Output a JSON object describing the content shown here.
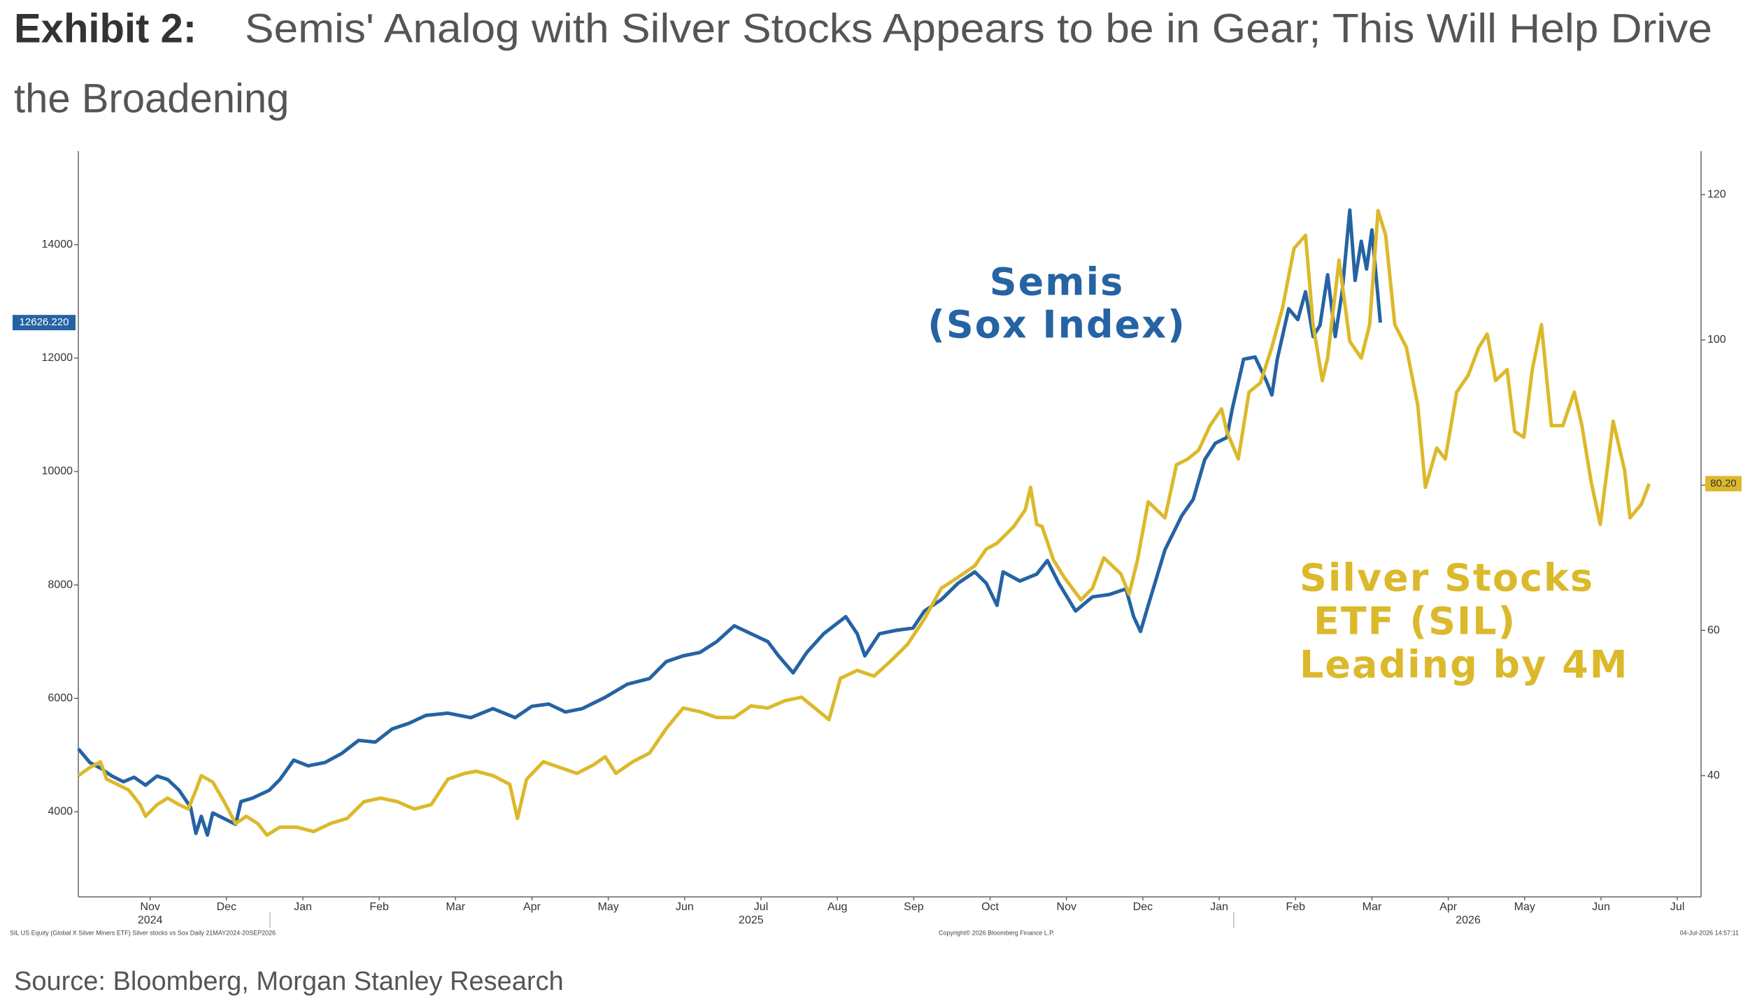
{
  "chart_data": {
    "type": "line",
    "exhibit_label": "Exhibit 2:",
    "title_lines": [
      "Semis' Analog with Silver Stocks Appears to be in Gear; This Will Help Drive",
      "the Broadening"
    ],
    "source": "Source: Bloomberg, Morgan Stanley Research",
    "footer": [
      "SIL US Equity (Global X Silver Miners ETF) Silver stocks vs Sox Daily 21MAY2024-20SEP2026",
      "Copyright© 2026 Bloomberg Finance L.P.",
      "04-Jul-2026 14:57:11"
    ],
    "annotations": [
      {
        "series": 0,
        "lines": [
          "Semis",
          "(Sox Index)"
        ]
      },
      {
        "series": 1,
        "lines": [
          "Silver Stocks",
          "ETF (SIL)",
          "Leading by 4M"
        ]
      }
    ],
    "xlim": [
      -0.94,
      20.31
    ],
    "xticks": [
      {
        "value": 0,
        "label": "Nov"
      },
      {
        "value": 1,
        "label": "Dec"
      },
      {
        "value": 2,
        "label": "Jan"
      },
      {
        "value": 3,
        "label": "Feb"
      },
      {
        "value": 4,
        "label": "Mar"
      },
      {
        "value": 5,
        "label": "Apr"
      },
      {
        "value": 6,
        "label": "May"
      },
      {
        "value": 7,
        "label": "Jun"
      },
      {
        "value": 8,
        "label": "Jul"
      },
      {
        "value": 9,
        "label": "Aug"
      },
      {
        "value": 10,
        "label": "Sep"
      },
      {
        "value": 11,
        "label": "Oct"
      },
      {
        "value": 12,
        "label": "Nov"
      },
      {
        "value": 13,
        "label": "Dec"
      },
      {
        "value": 14,
        "label": "Jan"
      },
      {
        "value": 15,
        "label": "Feb"
      },
      {
        "value": 16,
        "label": "Mar"
      },
      {
        "value": 17,
        "label": "Apr"
      },
      {
        "value": 18,
        "label": "May"
      },
      {
        "value": 19,
        "label": "Jun"
      },
      {
        "value": 20,
        "label": "Jul"
      }
    ],
    "year_labels": [
      {
        "value": 0,
        "label": "2024"
      },
      {
        "value": 7.87,
        "label": "2025"
      },
      {
        "value": 17.26,
        "label": "2026"
      }
    ],
    "year_dividers": [
      1.57,
      14.19
    ],
    "ylim": [
      2500,
      15650
    ],
    "yticks": [
      4000,
      6000,
      8000,
      10000,
      12000,
      14000
    ],
    "y2lim": [
      23.3,
      126
    ],
    "y2ticks": [
      40,
      60,
      80,
      100,
      120
    ],
    "grid": false,
    "series": [
      {
        "name": "Semis (Sox Index)",
        "color": "#2563a3",
        "axis": "y",
        "end_label": {
          "value": 12626.22,
          "label": "12626.220"
        },
        "x": [
          -0.94,
          -0.79,
          -0.65,
          -0.5,
          -0.35,
          -0.21,
          -0.06,
          0.09,
          0.23,
          0.38,
          0.53,
          0.6,
          0.67,
          0.75,
          0.82,
          0.97,
          1.12,
          1.19,
          1.34,
          1.56,
          1.7,
          1.88,
          2.07,
          2.29,
          2.51,
          2.73,
          2.95,
          3.17,
          3.39,
          3.61,
          3.9,
          4.2,
          4.49,
          4.78,
          5.0,
          5.22,
          5.44,
          5.66,
          5.96,
          6.25,
          6.54,
          6.76,
          6.98,
          7.2,
          7.42,
          7.65,
          7.87,
          8.09,
          8.23,
          8.42,
          8.6,
          8.82,
          9.11,
          9.26,
          9.36,
          9.55,
          9.77,
          9.99,
          10.14,
          10.36,
          10.58,
          10.8,
          10.95,
          11.09,
          11.17,
          11.39,
          11.61,
          11.75,
          11.9,
          12.12,
          12.34,
          12.56,
          12.78,
          12.88,
          12.97,
          13.07,
          13.29,
          13.51,
          13.66,
          13.81,
          13.95,
          14.1,
          14.17,
          14.32,
          14.47,
          14.62,
          14.69,
          14.76,
          14.91,
          15.03,
          15.13,
          15.23,
          15.32,
          15.42,
          15.52,
          15.61,
          15.71,
          15.78,
          15.86,
          15.93,
          16.0,
          16.11
        ],
        "values": [
          5110,
          4870,
          4770,
          4630,
          4530,
          4610,
          4470,
          4630,
          4570,
          4380,
          4080,
          3620,
          3920,
          3590,
          3980,
          3880,
          3780,
          4180,
          4240,
          4380,
          4570,
          4910,
          4810,
          4870,
          5030,
          5260,
          5230,
          5460,
          5560,
          5700,
          5740,
          5660,
          5820,
          5660,
          5860,
          5900,
          5760,
          5820,
          6020,
          6250,
          6350,
          6650,
          6750,
          6810,
          7000,
          7280,
          7140,
          7000,
          6750,
          6450,
          6810,
          7140,
          7440,
          7140,
          6750,
          7140,
          7200,
          7240,
          7540,
          7740,
          8030,
          8230,
          8030,
          7640,
          8230,
          8070,
          8190,
          8430,
          8030,
          7540,
          7790,
          7830,
          7930,
          7440,
          7180,
          7640,
          8620,
          9220,
          9510,
          10210,
          10500,
          10600,
          11100,
          11980,
          12020,
          11590,
          11350,
          11980,
          12870,
          12680,
          13170,
          12380,
          12580,
          13470,
          12380,
          13170,
          14610,
          13370,
          14060,
          13570,
          14260,
          12626.22
        ]
      },
      {
        "name": "Silver Stocks ETF (SIL)",
        "color": "#dcb92b",
        "axis": "y2",
        "end_label": {
          "value": 80.2,
          "label": "80.20"
        },
        "x": [
          -0.94,
          -0.79,
          -0.65,
          -0.57,
          -0.43,
          -0.28,
          -0.13,
          -0.06,
          0.09,
          0.23,
          0.38,
          0.5,
          0.6,
          0.67,
          0.82,
          0.97,
          1.12,
          1.26,
          1.41,
          1.53,
          1.7,
          1.92,
          2.14,
          2.36,
          2.58,
          2.8,
          3.02,
          3.24,
          3.46,
          3.68,
          3.9,
          4.12,
          4.27,
          4.49,
          4.71,
          4.81,
          4.93,
          5.15,
          5.37,
          5.59,
          5.81,
          5.96,
          6.1,
          6.32,
          6.54,
          6.76,
          6.98,
          7.2,
          7.42,
          7.65,
          7.87,
          8.09,
          8.31,
          8.53,
          8.67,
          8.89,
          9.04,
          9.26,
          9.48,
          9.7,
          9.92,
          10.14,
          10.36,
          10.58,
          10.8,
          10.95,
          11.09,
          11.31,
          11.46,
          11.53,
          11.61,
          11.68,
          11.83,
          11.97,
          12.19,
          12.34,
          12.49,
          12.71,
          12.82,
          12.93,
          13.07,
          13.29,
          13.44,
          13.59,
          13.73,
          13.88,
          14.03,
          14.1,
          14.25,
          14.39,
          14.54,
          14.69,
          14.83,
          14.98,
          15.13,
          15.23,
          15.35,
          15.42,
          15.57,
          15.71,
          15.86,
          15.97,
          16.08,
          16.18,
          16.3,
          16.45,
          16.6,
          16.7,
          16.85,
          16.96,
          17.11,
          17.26,
          17.4,
          17.51,
          17.62,
          17.77,
          17.87,
          17.99,
          18.1,
          18.22,
          18.35,
          18.5,
          18.65,
          18.75,
          18.87,
          18.99,
          19.16,
          19.31,
          19.38,
          19.53,
          19.63
        ],
        "values": [
          40.0,
          41.1,
          41.9,
          39.5,
          38.8,
          38.0,
          36.0,
          34.4,
          36.0,
          36.9,
          36.0,
          35.4,
          38.0,
          40.0,
          39.1,
          36.4,
          33.4,
          34.4,
          33.4,
          31.8,
          32.9,
          32.9,
          32.3,
          33.4,
          34.1,
          36.4,
          36.9,
          36.4,
          35.4,
          36.0,
          39.5,
          40.3,
          40.6,
          40.0,
          38.8,
          34.1,
          39.5,
          41.9,
          41.1,
          40.3,
          41.5,
          42.6,
          40.3,
          41.9,
          43.1,
          46.5,
          49.3,
          48.8,
          48.0,
          48.0,
          49.6,
          49.3,
          50.3,
          50.8,
          49.6,
          47.7,
          53.4,
          54.5,
          53.7,
          55.8,
          58.1,
          61.6,
          65.8,
          67.3,
          68.9,
          71.2,
          72.0,
          74.3,
          76.6,
          79.7,
          74.6,
          74.3,
          69.7,
          67.3,
          64.2,
          65.8,
          70.0,
          67.8,
          65.0,
          69.7,
          77.7,
          75.5,
          82.8,
          83.6,
          84.8,
          88.2,
          90.5,
          87.4,
          83.6,
          92.8,
          94.1,
          99.0,
          104.4,
          112.6,
          114.4,
          102.1,
          94.4,
          97.5,
          111.0,
          99.8,
          97.5,
          102.1,
          117.8,
          114.4,
          102.1,
          99.0,
          91.0,
          79.7,
          85.1,
          83.6,
          92.8,
          95.1,
          99.0,
          100.8,
          94.4,
          95.9,
          87.4,
          86.6,
          95.9,
          102.1,
          88.2,
          88.2,
          92.8,
          88.2,
          80.5,
          74.6,
          88.8,
          82.0,
          75.5,
          77.4,
          80.2
        ]
      }
    ]
  }
}
